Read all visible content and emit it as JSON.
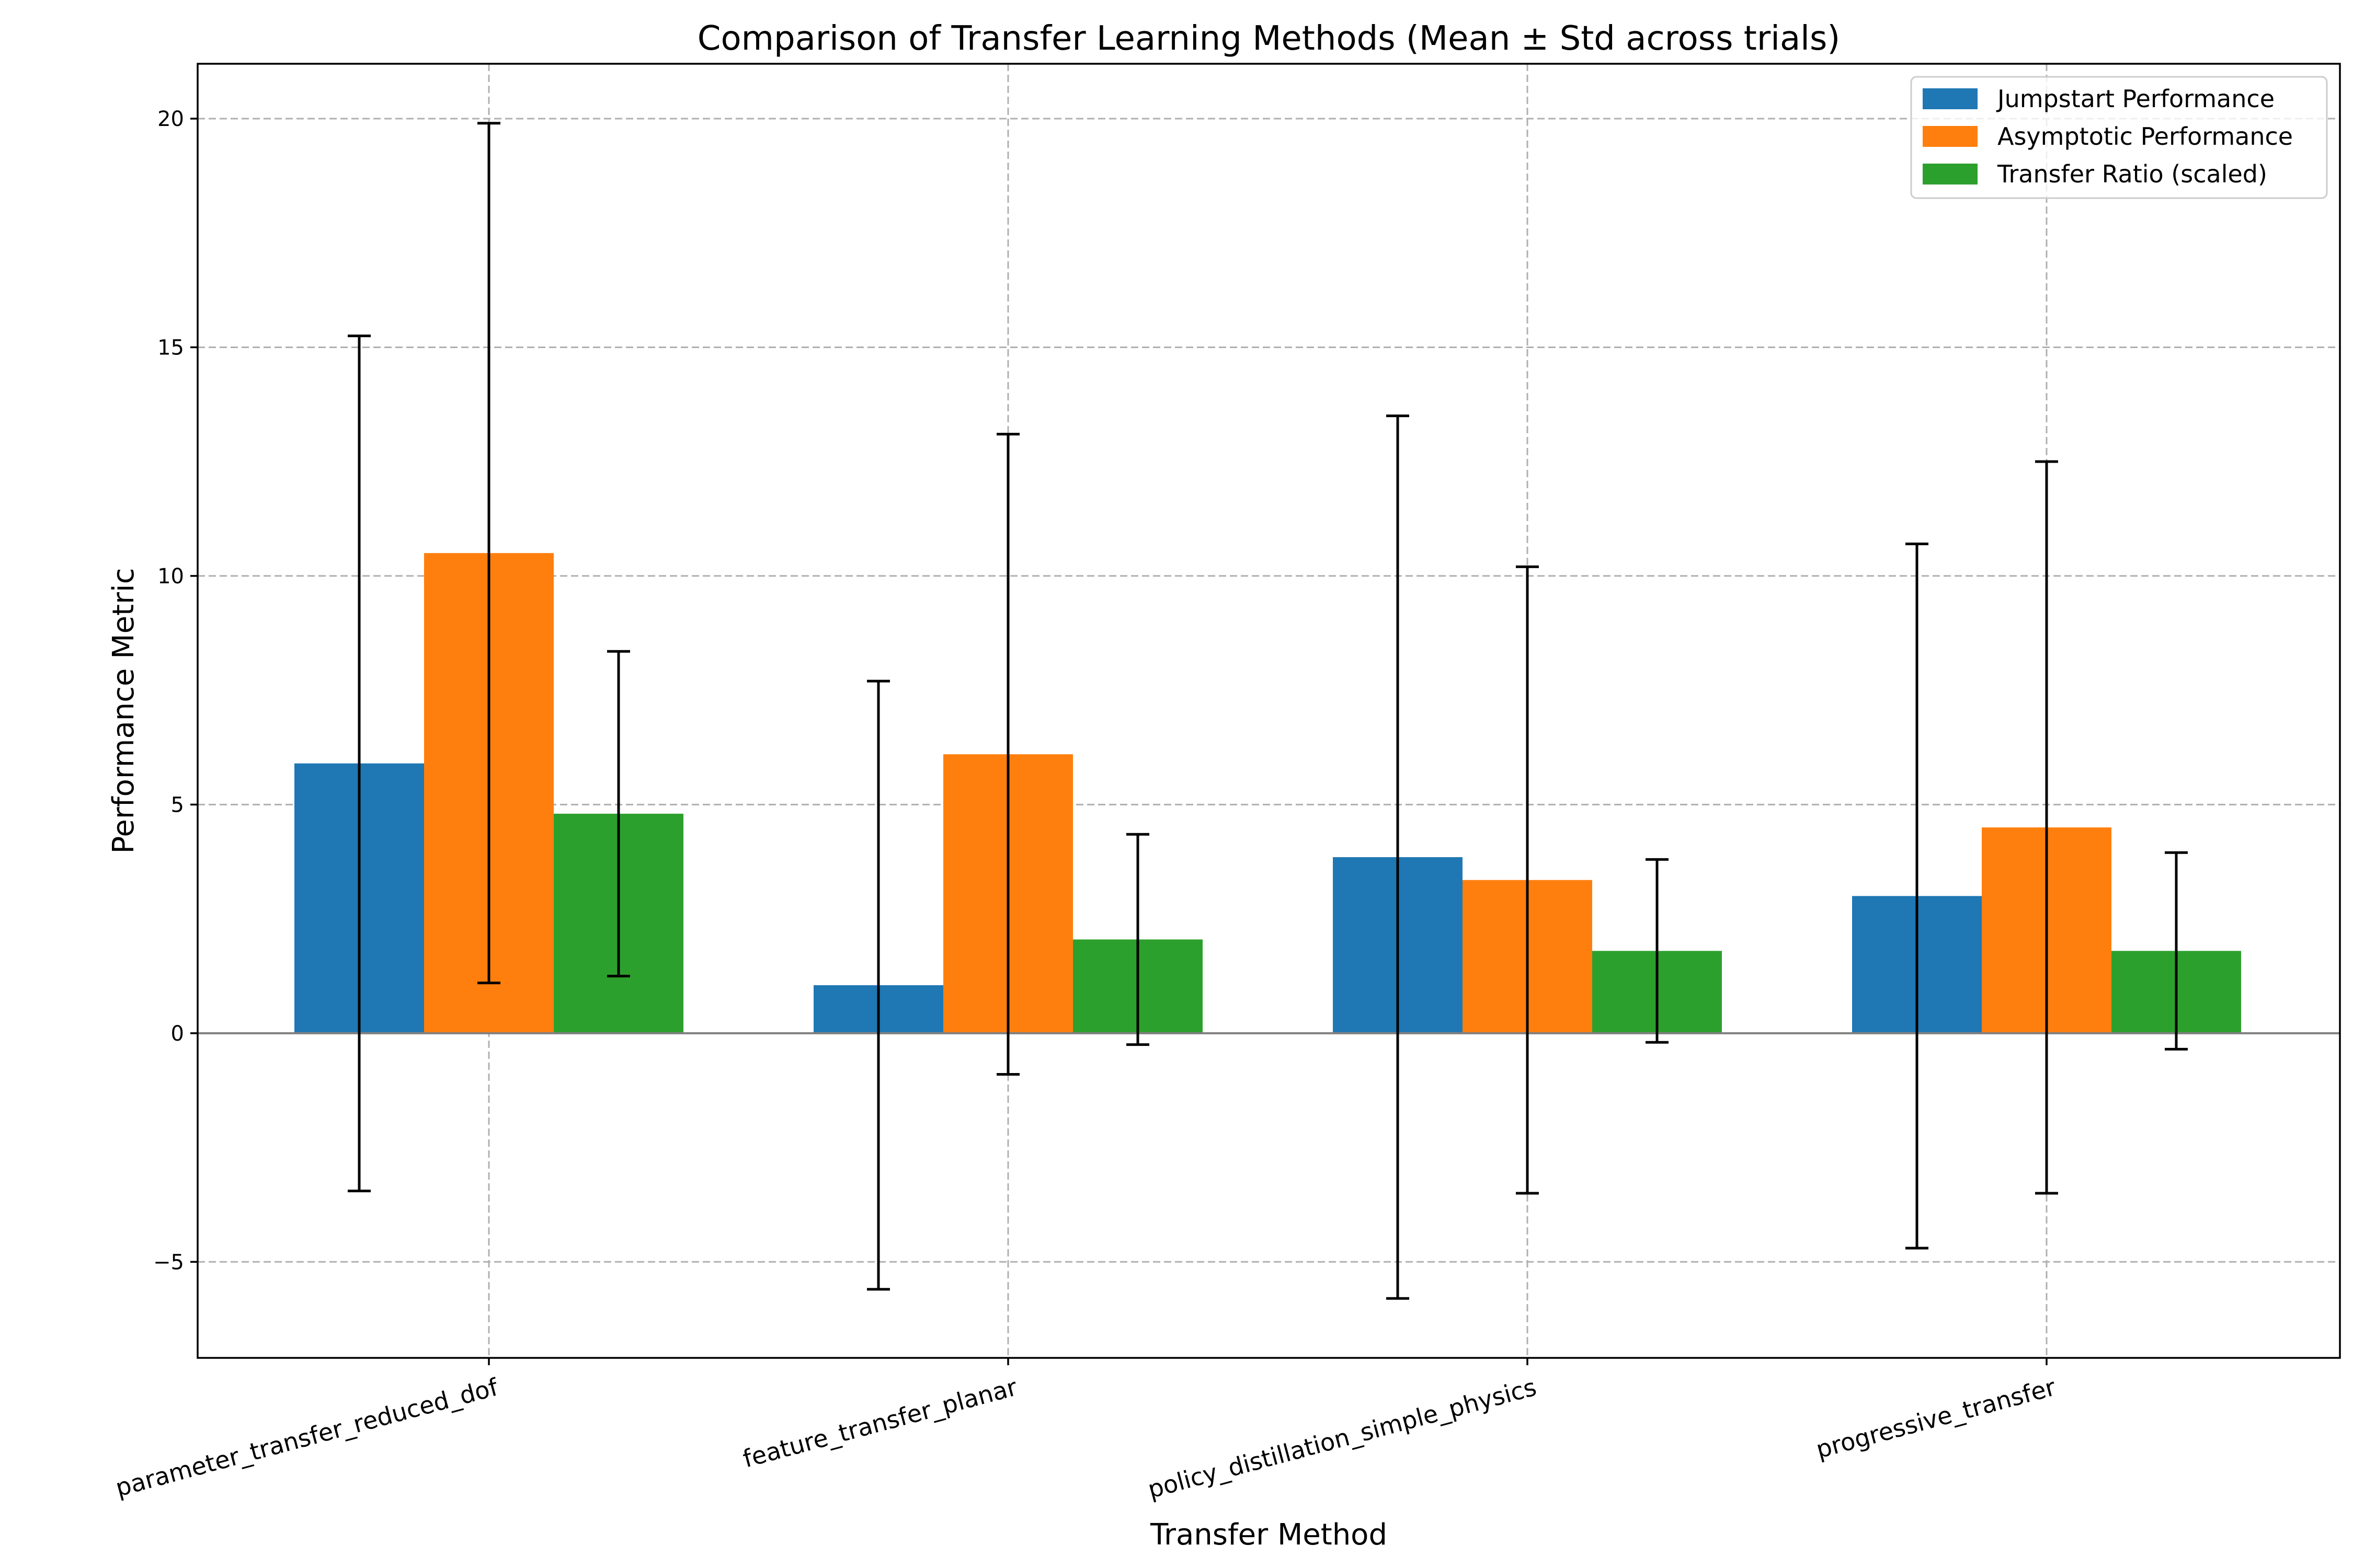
{
  "chart_data": {
    "type": "bar",
    "title": "Comparison of Transfer Learning Methods (Mean ± Std across trials)",
    "xlabel": "Transfer Method",
    "ylabel": "Performance Metric",
    "categories": [
      "parameter_transfer_reduced_dof",
      "feature_transfer_planar",
      "policy_distillation_simple_physics",
      "progressive_transfer"
    ],
    "series": [
      {
        "name": "Jumpstart Performance",
        "color": "#1f77b4",
        "values": [
          5.9,
          1.05,
          3.85,
          3.0
        ],
        "errors": [
          9.35,
          6.65,
          9.65,
          7.7
        ]
      },
      {
        "name": "Asymptotic Performance",
        "color": "#ff7f0e",
        "values": [
          10.5,
          6.1,
          3.35,
          4.5
        ],
        "errors": [
          9.4,
          7.0,
          6.85,
          8.0
        ]
      },
      {
        "name": "Transfer Ratio (scaled)",
        "color": "#2ca02c",
        "values": [
          4.8,
          2.05,
          1.8,
          1.8
        ],
        "errors": [
          3.55,
          2.3,
          2.0,
          2.15
        ]
      }
    ],
    "ylim": [
      -7.1,
      21.2
    ],
    "yticks": [
      -5,
      0,
      5,
      10,
      15,
      20
    ],
    "ytick_labels": [
      "−5",
      "0",
      "5",
      "10",
      "15",
      "20"
    ],
    "grid": true,
    "zero_line": true,
    "error_bars": true,
    "legend_position": "top-right"
  }
}
